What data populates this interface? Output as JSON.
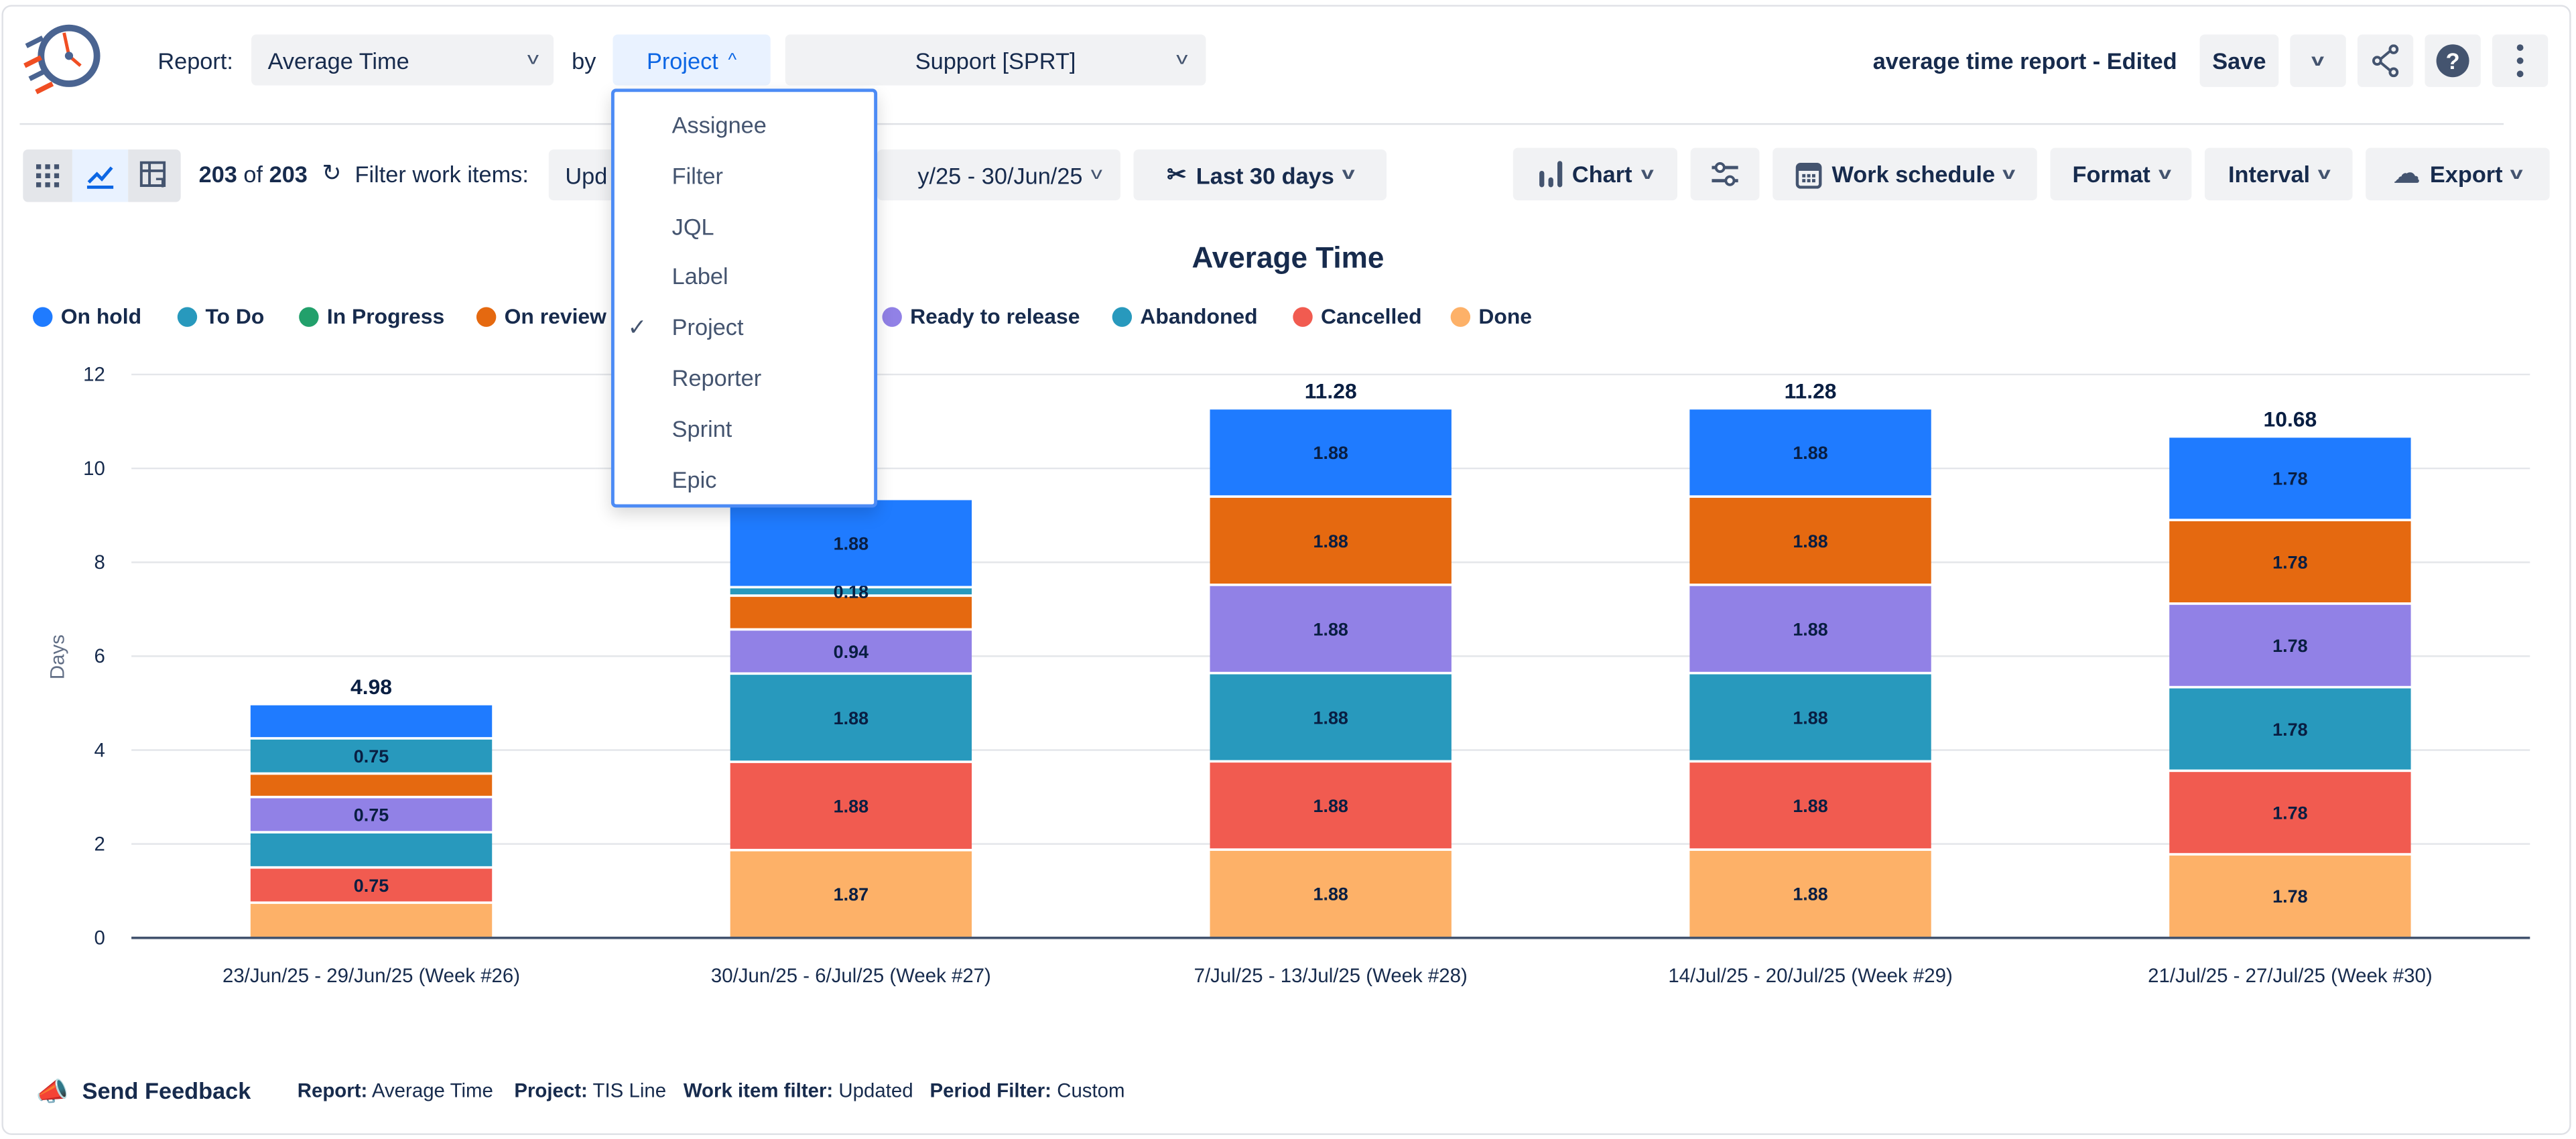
{
  "header": {
    "report_label": "Report:",
    "report_value": "Average Time",
    "by_label": "by",
    "group_by_value": "Project",
    "project_value": "Support [SPRT]",
    "report_name": "average time report - Edited",
    "save_label": "Save"
  },
  "toolbar": {
    "count": "203",
    "of_label": "of",
    "total": "203",
    "filter_label": "Filter work items:",
    "filter_value": "Upd",
    "date_range": "y/25 - 30/Jun/25",
    "period": "Last 30 days",
    "chart_label": "Chart",
    "work_schedule_label": "Work schedule",
    "format_label": "Format",
    "interval_label": "Interval",
    "export_label": "Export"
  },
  "group_by_menu": {
    "items": [
      "Assignee",
      "Filter",
      "JQL",
      "Label",
      "Project",
      "Reporter",
      "Sprint",
      "Epic"
    ],
    "selected": "Project"
  },
  "chart_data": {
    "type": "bar",
    "stacked": true,
    "title": "Average Time",
    "ylabel": "Days",
    "xlabel": "",
    "ylim": [
      0,
      12
    ],
    "yticks": [
      0,
      2,
      4,
      6,
      8,
      10,
      12
    ],
    "grid": true,
    "legend_placement": "top-left",
    "categories": [
      "23/Jun/25 - 29/Jun/25 (Week #26)",
      "30/Jun/25 - 6/Jul/25 (Week #27)",
      "7/Jul/25 - 13/Jul/25 (Week #28)",
      "14/Jul/25 - 20/Jul/25 (Week #29)",
      "21/Jul/25 - 27/Jul/25 (Week #30)"
    ],
    "totals": [
      "4.98",
      null,
      "11.28",
      "11.28",
      "10.68"
    ],
    "series": [
      {
        "name": "On hold",
        "color": "#1f7bff",
        "values": [
          0.73,
          1.88,
          1.88,
          1.88,
          1.78
        ],
        "labels": [
          null,
          "1.88",
          "1.88",
          "1.88",
          "1.78"
        ]
      },
      {
        "name": "To Do",
        "color": "#2899bd",
        "values": [
          0.75,
          0.18,
          0,
          0,
          0
        ],
        "labels": [
          "0.75",
          "0.18",
          null,
          null,
          null
        ]
      },
      {
        "name": "In Progress",
        "color": "#22a06b",
        "values": [
          0,
          0,
          0,
          0,
          0
        ],
        "labels": [
          null,
          null,
          null,
          null,
          null
        ]
      },
      {
        "name": "On review",
        "color": "#e56910",
        "values": [
          0.5,
          0.72,
          1.88,
          1.88,
          1.78
        ],
        "labels": [
          null,
          null,
          "1.88",
          "1.88",
          "1.78"
        ]
      },
      {
        "name": "Ready to release",
        "color": "#9181e6",
        "values": [
          0.75,
          0.94,
          1.88,
          1.88,
          1.78
        ],
        "labels": [
          "0.75",
          "0.94",
          "1.88",
          "1.88",
          "1.78"
        ]
      },
      {
        "name": "Abandoned",
        "color": "#2899bd",
        "values": [
          0.75,
          1.88,
          1.88,
          1.88,
          1.78
        ],
        "labels": [
          null,
          "1.88",
          "1.88",
          "1.88",
          "1.78"
        ]
      },
      {
        "name": "Cancelled",
        "color": "#f15b50",
        "values": [
          0.75,
          1.88,
          1.88,
          1.88,
          1.78
        ],
        "labels": [
          "0.75",
          "1.88",
          "1.88",
          "1.88",
          "1.78"
        ]
      },
      {
        "name": "Done",
        "color": "#fdb168",
        "values": [
          0.75,
          1.87,
          1.88,
          1.88,
          1.78
        ],
        "labels": [
          null,
          "1.87",
          "1.88",
          "1.88",
          "1.78"
        ]
      }
    ]
  },
  "footer": {
    "feedback_label": "Send Feedback",
    "report_key": "Report:",
    "report_val": "Average Time",
    "project_key": "Project:",
    "project_val": "TIS Line",
    "filter_key": "Work item filter:",
    "filter_val": "Updated",
    "period_key": "Period Filter:",
    "period_val": "Custom"
  }
}
